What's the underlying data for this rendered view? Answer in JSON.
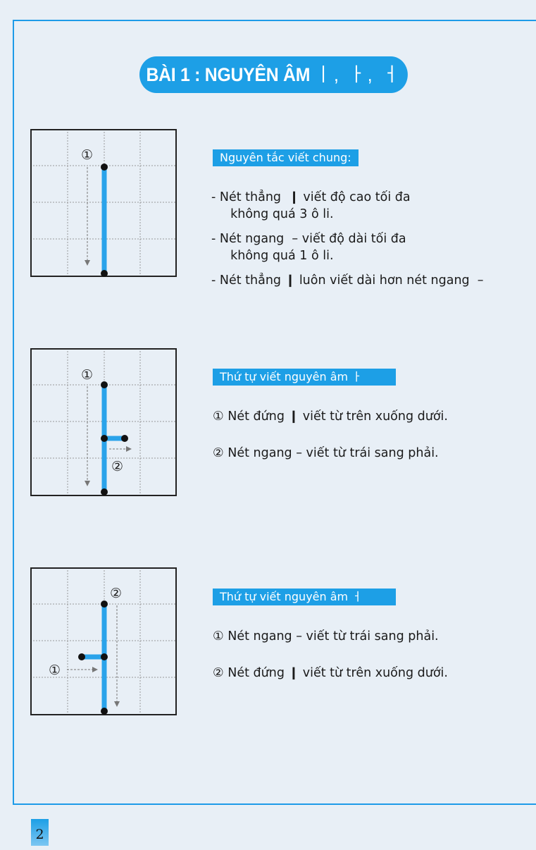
{
  "title": {
    "text": "BÀI 1 : NGUYÊN ÂM",
    "vowels": "ㅣ, ㅏ, ㅓ"
  },
  "colors": {
    "accent": "#1d9fe6",
    "background": "#e8eff6",
    "stroke": "#2aa3ea"
  },
  "section1": {
    "label": "Nguyên tắc viết chung:",
    "lines": [
      "- Nét thẳng  ❙ viết độ cao tối đa",
      "  không quá 3 ô li.",
      "- Nét ngang  – viết độ dài tối đa",
      "  không quá 1 ô li.",
      "- Nét thẳng ❙ luôn viết dài hơn nét ngang  –"
    ],
    "grid_marks": [
      "①"
    ]
  },
  "section2": {
    "label": "Thứ tự viết nguyên âm  ㅏ",
    "steps": [
      "① Nét đứng ❙ viết từ trên xuống dưới.",
      "② Nét ngang – viết từ trái sang phải."
    ],
    "grid_marks": [
      "①",
      "②"
    ]
  },
  "section3": {
    "label": "Thứ tự viết nguyên âm  ㅓ",
    "steps": [
      "① Nét ngang – viết từ trái sang phải.",
      "② Nét đứng ❙ viết từ trên xuống dưới."
    ],
    "grid_marks": [
      "①",
      "②"
    ]
  },
  "page_number": "2"
}
